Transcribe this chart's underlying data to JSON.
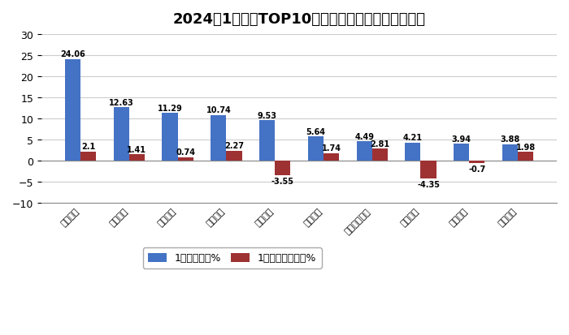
{
  "title": "2024年1月轻卡TOP10车企市场占比及占比同比增减",
  "categories": [
    "北汽福田",
    "江淮汽车",
    "重庆长安",
    "东风汽车",
    "长城汽车",
    "江铃汽车",
    "华晨鑫源汽车",
    "上汽大通",
    "中国重汽",
    "一汽解放"
  ],
  "market_share": [
    24.06,
    12.63,
    11.29,
    10.74,
    9.53,
    5.64,
    4.49,
    4.21,
    3.94,
    3.88
  ],
  "yoy_change": [
    2.1,
    1.41,
    0.74,
    2.27,
    -3.55,
    1.74,
    2.81,
    -4.35,
    -0.7,
    1.98
  ],
  "bar_color_share": "#4472C4",
  "bar_color_yoy": "#9E3132",
  "legend_share": "1月市场份额%",
  "legend_yoy": "1月份额同比增减%",
  "ylim_min": -10,
  "ylim_max": 30,
  "yticks": [
    -10,
    -5,
    0,
    5,
    10,
    15,
    20,
    25,
    30
  ],
  "bg_color": "#FFFFFF",
  "grid_color": "#CCCCCC",
  "title_fontsize": 13,
  "label_fontsize": 7,
  "tick_fontsize": 9,
  "xtick_fontsize": 8,
  "legend_fontsize": 9,
  "bar_width": 0.32
}
